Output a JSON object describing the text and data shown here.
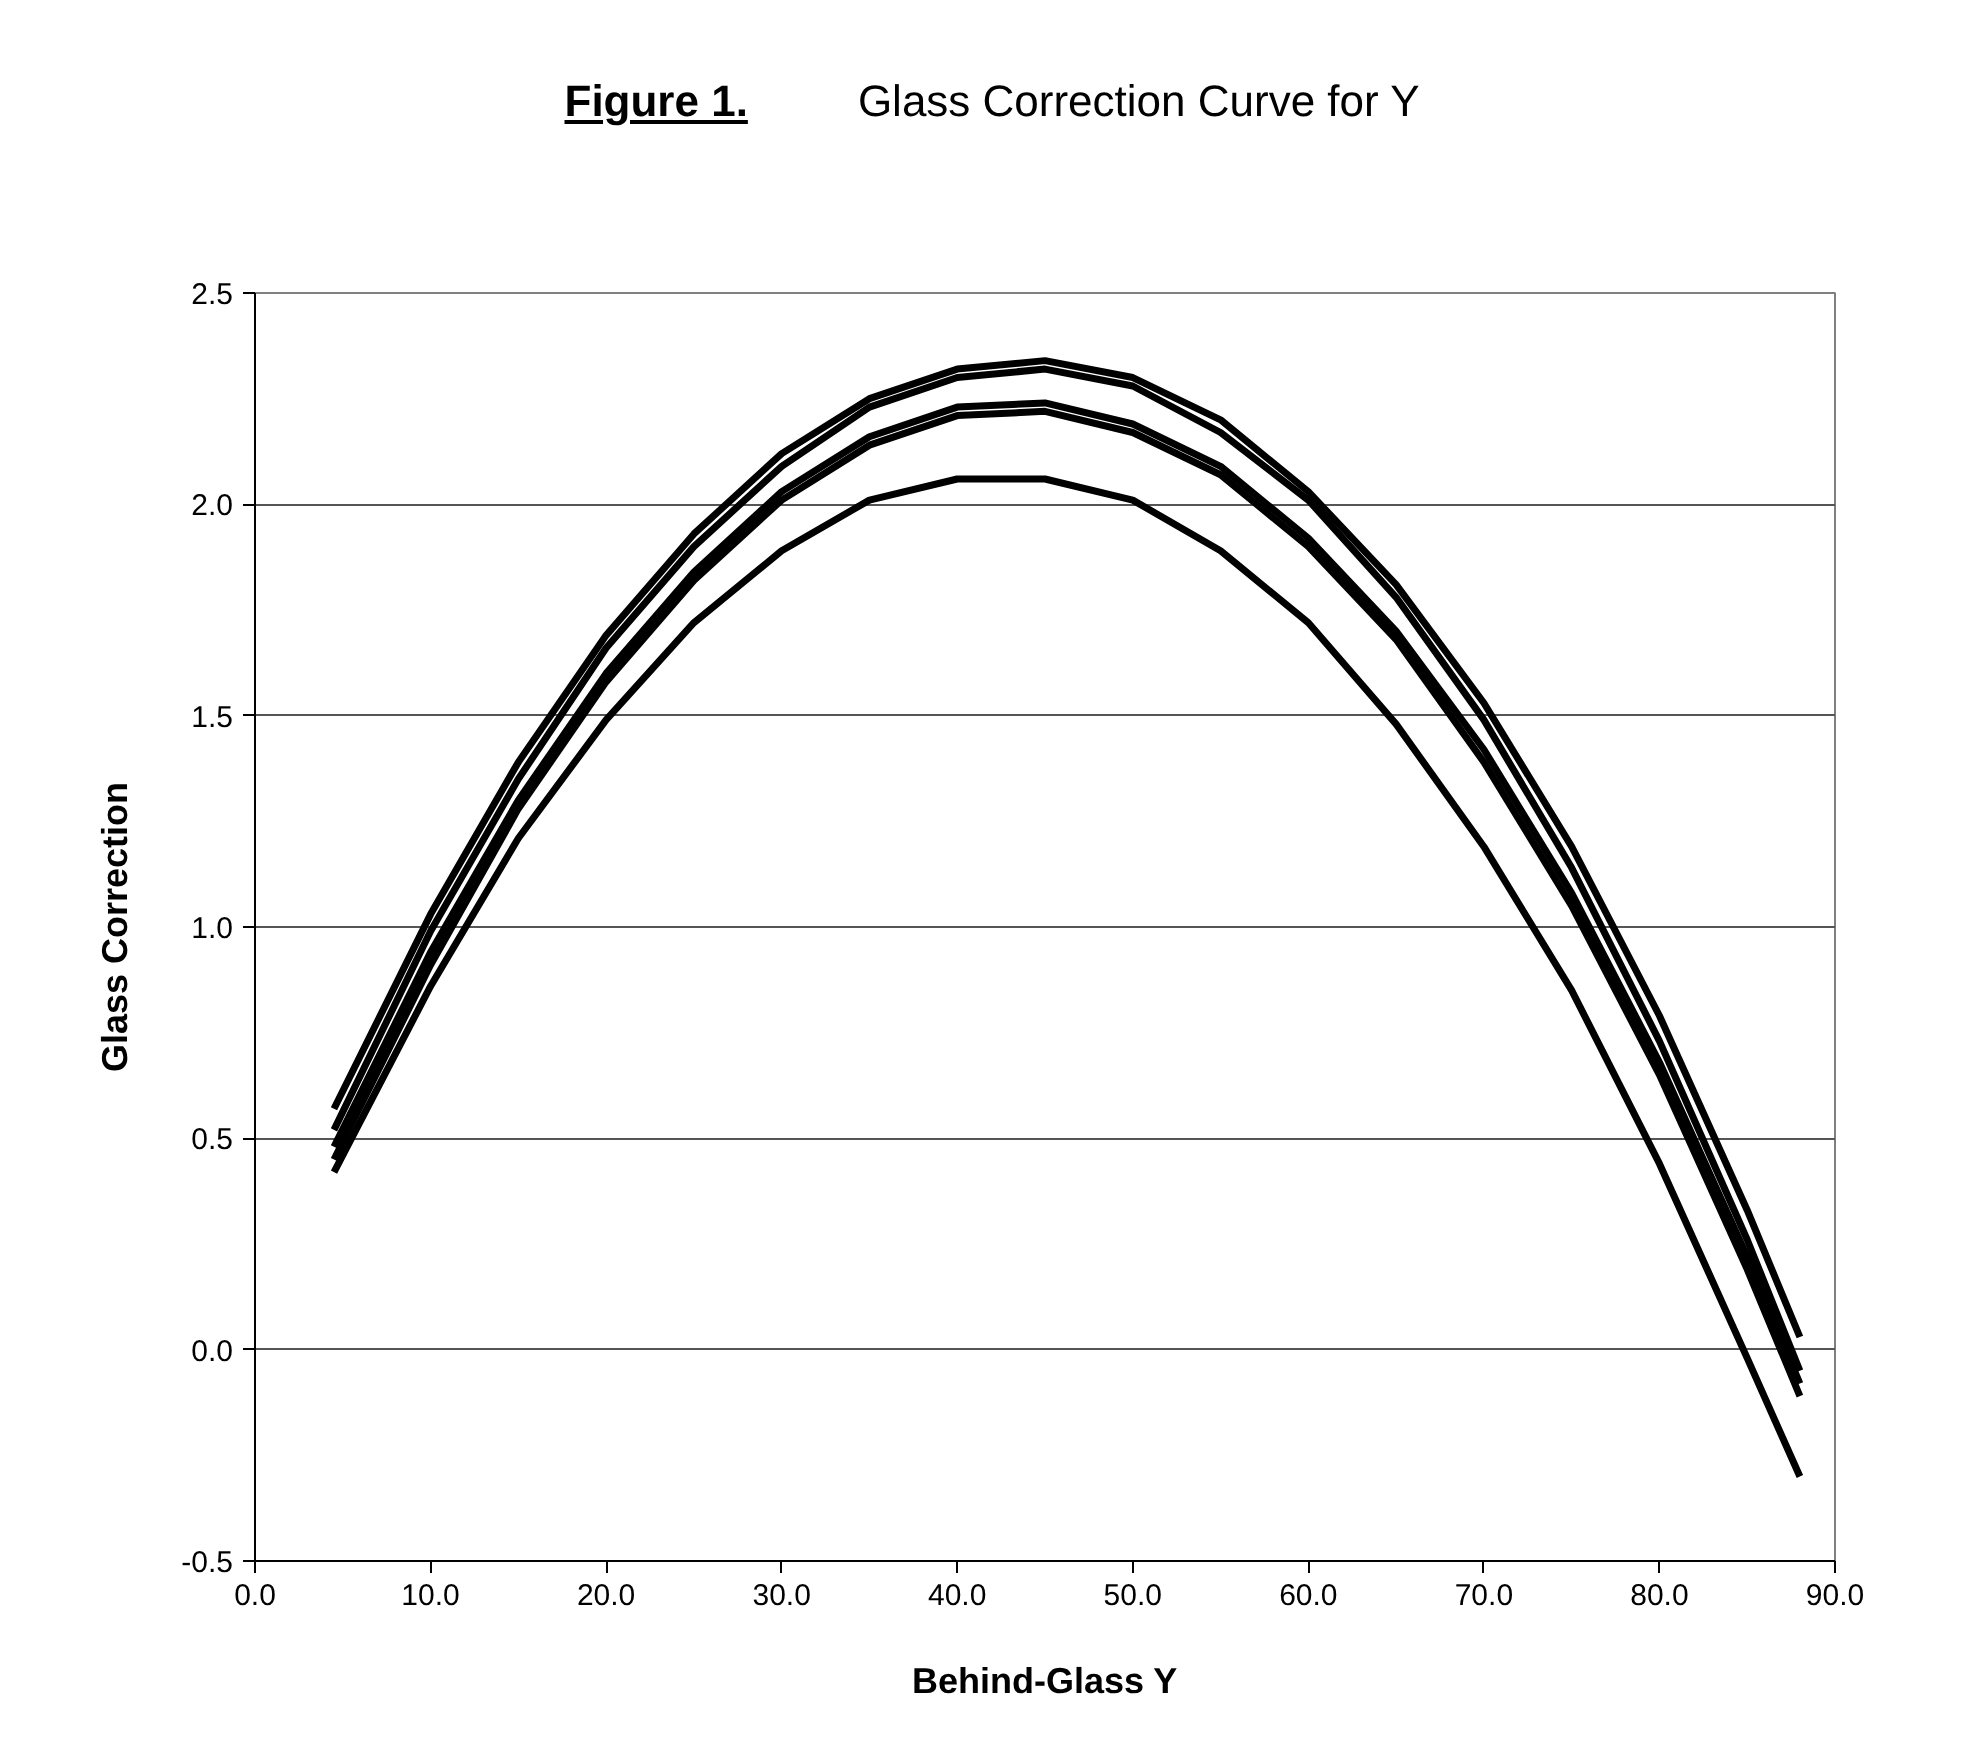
{
  "chart_data": {
    "type": "line",
    "title": "Figure 1.",
    "subtitle": "Glass Correction Curve for Y",
    "xlabel": "Behind-Glass Y",
    "ylabel": "Glass Correction",
    "x": [
      4.5,
      10,
      15,
      20,
      25,
      30,
      35,
      40,
      45,
      50,
      55,
      60,
      65,
      70,
      75,
      80,
      85,
      88
    ],
    "series": [
      {
        "color": "#000000",
        "values": [
          0.57,
          1.03,
          1.39,
          1.69,
          1.93,
          2.12,
          2.25,
          2.32,
          2.34,
          2.3,
          2.2,
          2.03,
          1.81,
          1.53,
          1.19,
          0.79,
          0.33,
          0.03
        ]
      },
      {
        "color": "#000000",
        "values": [
          0.52,
          0.99,
          1.35,
          1.66,
          1.9,
          2.09,
          2.23,
          2.3,
          2.32,
          2.28,
          2.17,
          2.01,
          1.78,
          1.49,
          1.14,
          0.73,
          0.26,
          -0.05
        ]
      },
      {
        "color": "#000000",
        "values": [
          0.48,
          0.94,
          1.3,
          1.6,
          1.84,
          2.03,
          2.16,
          2.23,
          2.24,
          2.19,
          2.09,
          1.92,
          1.7,
          1.42,
          1.08,
          0.68,
          0.22,
          -0.08
        ]
      },
      {
        "color": "#000000",
        "values": [
          0.45,
          0.91,
          1.28,
          1.58,
          1.82,
          2.01,
          2.14,
          2.21,
          2.22,
          2.17,
          2.07,
          1.9,
          1.68,
          1.39,
          1.05,
          0.65,
          0.19,
          -0.11
        ]
      },
      {
        "color": "#000000",
        "values": [
          0.42,
          0.86,
          1.21,
          1.49,
          1.72,
          1.89,
          2.01,
          2.06,
          2.06,
          2.01,
          1.89,
          1.72,
          1.48,
          1.19,
          0.85,
          0.44,
          -0.02,
          -0.3
        ]
      }
    ],
    "xlim": [
      0,
      90
    ],
    "ylim": [
      -0.5,
      2.5
    ],
    "xticks": [
      {
        "value": 0,
        "label": "0.0"
      },
      {
        "value": 10,
        "label": "10.0"
      },
      {
        "value": 20,
        "label": "20.0"
      },
      {
        "value": 30,
        "label": "30.0"
      },
      {
        "value": 40,
        "label": "40.0"
      },
      {
        "value": 50,
        "label": "50.0"
      },
      {
        "value": 60,
        "label": "60.0"
      },
      {
        "value": 70,
        "label": "70.0"
      },
      {
        "value": 80,
        "label": "80.0"
      },
      {
        "value": 90,
        "label": "90.0"
      }
    ],
    "yticks": [
      {
        "value": -0.5,
        "label": "-0.5"
      },
      {
        "value": 0,
        "label": "0.0"
      },
      {
        "value": 0.5,
        "label": "0.5"
      },
      {
        "value": 1,
        "label": "1.0"
      },
      {
        "value": 1.5,
        "label": "1.5"
      },
      {
        "value": 2,
        "label": "2.0"
      },
      {
        "value": 2.5,
        "label": "2.5"
      }
    ],
    "grid": "y",
    "marker": "none",
    "line_style": "solid"
  }
}
